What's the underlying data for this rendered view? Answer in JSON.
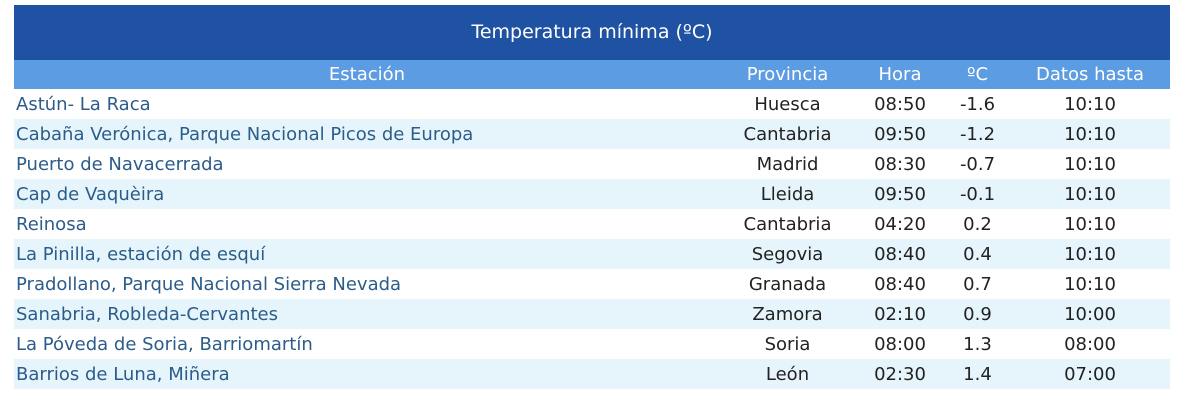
{
  "table": {
    "title": "Temperatura mínima (ºC)",
    "headers": [
      "Estación",
      "Provincia",
      "Hora",
      "ºC",
      "Datos hasta"
    ],
    "rows": [
      [
        "Astún- La Raca",
        "Huesca",
        "08:50",
        "-1.6",
        "10:10"
      ],
      [
        "Cabaña Verónica, Parque Nacional Picos de Europa",
        "Cantabria",
        "09:50",
        "-1.2",
        "10:10"
      ],
      [
        "Puerto de Navacerrada",
        "Madrid",
        "08:30",
        "-0.7",
        "10:10"
      ],
      [
        "Cap de Vaquèira",
        "Lleida",
        "09:50",
        "-0.1",
        "10:10"
      ],
      [
        "Reinosa",
        "Cantabria",
        "04:20",
        "0.2",
        "10:10"
      ],
      [
        "La Pinilla, estación de esquí",
        "Segovia",
        "08:40",
        "0.4",
        "10:10"
      ],
      [
        "Pradollano, Parque Nacional Sierra Nevada",
        "Granada",
        "08:40",
        "0.7",
        "10:10"
      ],
      [
        "Sanabria, Robleda-Cervantes",
        "Zamora",
        "02:10",
        "0.9",
        "10:00"
      ],
      [
        "La Póveda de Soria, Barriomartín",
        "Soria",
        "08:00",
        "1.3",
        "08:00"
      ],
      [
        "Barrios de Luna, Miñera",
        "León",
        "02:30",
        "1.4",
        "07:00"
      ]
    ]
  }
}
